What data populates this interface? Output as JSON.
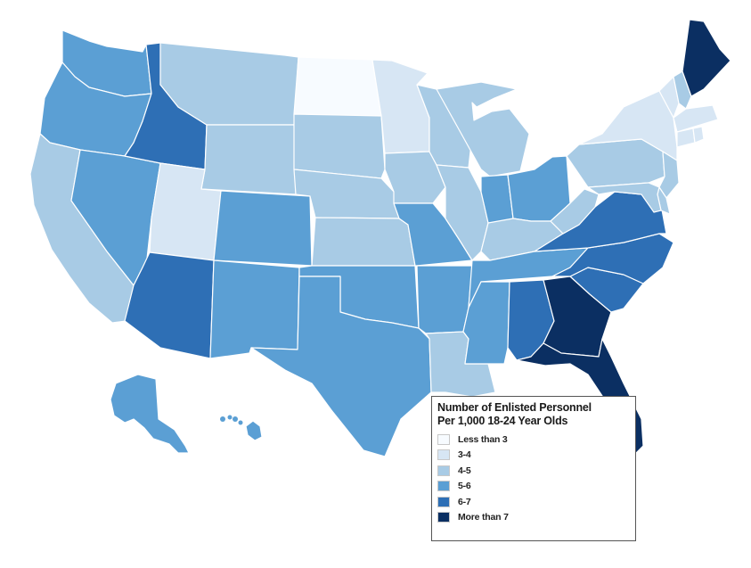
{
  "legend": {
    "title_line1": "Number of Enlisted Personnel",
    "title_line2": "Per 1,000 18-24 Year Olds",
    "classes": [
      {
        "label": "Less than 3",
        "color": "#f7fbff"
      },
      {
        "label": "3-4",
        "color": "#d7e6f4"
      },
      {
        "label": "4-5",
        "color": "#a8cbe5"
      },
      {
        "label": "5-6",
        "color": "#5b9fd4"
      },
      {
        "label": "6-7",
        "color": "#2e6fb5"
      },
      {
        "label": "More than 7",
        "color": "#0b2f62"
      }
    ]
  },
  "states": [
    {
      "id": "WA",
      "class": 3
    },
    {
      "id": "OR",
      "class": 3
    },
    {
      "id": "CA",
      "class": 2
    },
    {
      "id": "NV",
      "class": 3
    },
    {
      "id": "ID",
      "class": 4
    },
    {
      "id": "MT",
      "class": 2
    },
    {
      "id": "WY",
      "class": 2
    },
    {
      "id": "UT",
      "class": 1
    },
    {
      "id": "AZ",
      "class": 4
    },
    {
      "id": "CO",
      "class": 3
    },
    {
      "id": "NM",
      "class": 3
    },
    {
      "id": "ND",
      "class": 0
    },
    {
      "id": "SD",
      "class": 2
    },
    {
      "id": "NE",
      "class": 2
    },
    {
      "id": "KS",
      "class": 2
    },
    {
      "id": "OK",
      "class": 3
    },
    {
      "id": "TX",
      "class": 3
    },
    {
      "id": "MN",
      "class": 1
    },
    {
      "id": "IA",
      "class": 2
    },
    {
      "id": "MO",
      "class": 3
    },
    {
      "id": "AR",
      "class": 3
    },
    {
      "id": "LA",
      "class": 2
    },
    {
      "id": "WI",
      "class": 2
    },
    {
      "id": "IL",
      "class": 2
    },
    {
      "id": "MI",
      "class": 2
    },
    {
      "id": "IN",
      "class": 3
    },
    {
      "id": "OH",
      "class": 3
    },
    {
      "id": "KY",
      "class": 2
    },
    {
      "id": "TN",
      "class": 3
    },
    {
      "id": "MS",
      "class": 3
    },
    {
      "id": "AL",
      "class": 4
    },
    {
      "id": "GA",
      "class": 5
    },
    {
      "id": "FL",
      "class": 5
    },
    {
      "id": "SC",
      "class": 4
    },
    {
      "id": "NC",
      "class": 4
    },
    {
      "id": "VA",
      "class": 4
    },
    {
      "id": "WV",
      "class": 2
    },
    {
      "id": "PA",
      "class": 2
    },
    {
      "id": "NY",
      "class": 1
    },
    {
      "id": "VT",
      "class": 1
    },
    {
      "id": "NH",
      "class": 2
    },
    {
      "id": "ME",
      "class": 5
    },
    {
      "id": "MA",
      "class": 1
    },
    {
      "id": "CT",
      "class": 1
    },
    {
      "id": "RI",
      "class": 1
    },
    {
      "id": "NJ",
      "class": 2
    },
    {
      "id": "DE",
      "class": 2
    },
    {
      "id": "MD",
      "class": 2
    },
    {
      "id": "AK",
      "class": 3
    },
    {
      "id": "HI",
      "class": 3
    }
  ]
}
